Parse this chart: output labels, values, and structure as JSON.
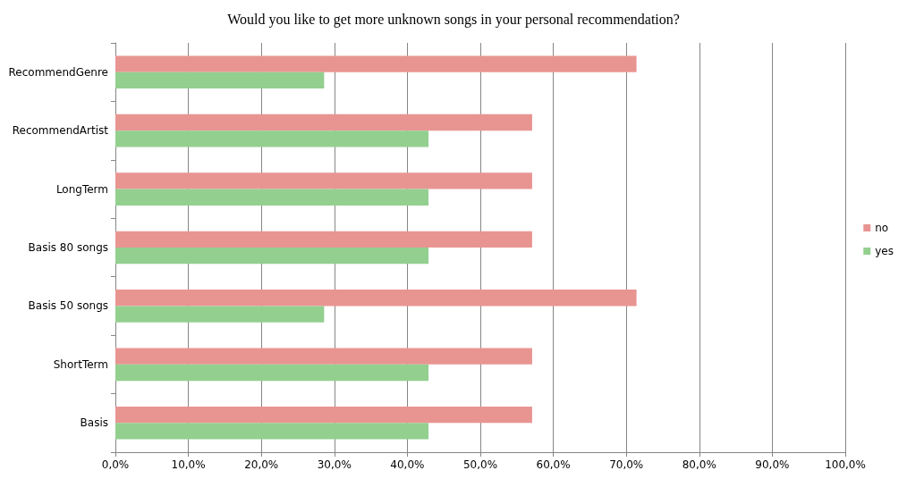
{
  "chart_data": {
    "type": "bar",
    "orientation": "horizontal",
    "title": "Would you like to get more unknown songs in your personal recommendation?",
    "categories": [
      "RecommendGenre",
      "RecommendArtist",
      "LongTerm",
      "Basis 80 songs",
      "Basis 50 songs",
      "ShortTerm",
      "Basis"
    ],
    "series": [
      {
        "name": "no",
        "color": "#e89592",
        "values": [
          71.4,
          57.1,
          57.1,
          57.1,
          71.4,
          57.1,
          57.1
        ]
      },
      {
        "name": "yes",
        "color": "#93cf8f",
        "values": [
          28.6,
          42.9,
          42.9,
          42.9,
          28.6,
          42.9,
          42.9
        ]
      }
    ],
    "xlim": [
      0,
      100
    ],
    "xticks": [
      {
        "value": 0,
        "label": "0,0%"
      },
      {
        "value": 10,
        "label": "10,0%"
      },
      {
        "value": 20,
        "label": "20,0%"
      },
      {
        "value": 30,
        "label": "30,0%"
      },
      {
        "value": 40,
        "label": "40,0%"
      },
      {
        "value": 50,
        "label": "50,0%"
      },
      {
        "value": 60,
        "label": "60,0%"
      },
      {
        "value": 70,
        "label": "70,0%"
      },
      {
        "value": 80,
        "label": "80,0%"
      },
      {
        "value": 90,
        "label": "90,0%"
      },
      {
        "value": 100,
        "label": "100,0%"
      }
    ],
    "grid": "x",
    "legend": "right"
  }
}
